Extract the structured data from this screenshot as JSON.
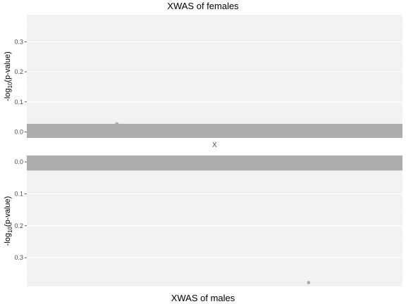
{
  "chart_data": [
    {
      "type": "scatter",
      "title": "XWAS of females",
      "xlabel": "",
      "ylabel": {
        "prefix": "-log",
        "sub": "10",
        "suffix": "(p-value)"
      },
      "y_ticks": [
        "0.0",
        "0.1",
        "0.2",
        "0.3"
      ],
      "ylim": [
        -0.02,
        0.39
      ],
      "y_reversed": false,
      "x_tick_labels": [
        "X"
      ],
      "x_position_range": [
        0,
        1
      ],
      "bands": [
        {
          "y_from": -0.02,
          "y_to": 0.027,
          "color": "#adadad"
        }
      ],
      "series": [
        {
          "points": [
            {
              "x": 0.24,
              "y": 0.027
            }
          ],
          "color": "#adadad"
        }
      ],
      "grid": true,
      "panel_background": "#f2f2f2"
    },
    {
      "type": "scatter",
      "title": "XWAS of males",
      "xlabel": "",
      "ylabel": {
        "prefix": "-log",
        "sub": "10",
        "suffix": "(p-value)"
      },
      "y_ticks": [
        "0.0",
        "0.1",
        "0.2",
        "0.3"
      ],
      "ylim": [
        -0.02,
        0.39
      ],
      "y_reversed": true,
      "x_tick_labels": [],
      "x_position_range": [
        0,
        1
      ],
      "bands": [
        {
          "y_from": -0.02,
          "y_to": 0.027,
          "color": "#adadad"
        }
      ],
      "series": [
        {
          "points": [
            {
              "x": 0.75,
              "y": 0.378
            }
          ],
          "color": "#adadad"
        }
      ],
      "grid": true,
      "panel_background": "#f2f2f2"
    }
  ]
}
